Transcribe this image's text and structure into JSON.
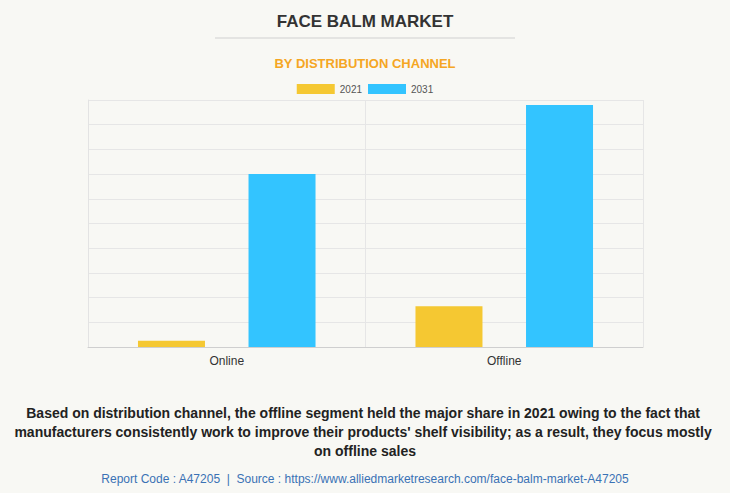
{
  "chart_data": {
    "type": "bar",
    "title": "FACE BALM MARKET",
    "subtitle": "BY DISTRIBUTION CHANNEL",
    "categories": [
      "Online",
      "Offline"
    ],
    "series": [
      {
        "name": "2021",
        "color": "#f5c832",
        "values": [
          0.25,
          1.65
        ]
      },
      {
        "name": "2031",
        "color": "#33c4ff",
        "values": [
          7.0,
          9.8
        ]
      }
    ],
    "ylim": [
      0,
      10
    ],
    "yticks": [
      0,
      1,
      2,
      3,
      4,
      5,
      6,
      7,
      8,
      9,
      10
    ],
    "grid": true,
    "tick_labels": "x",
    "legend": "top",
    "data_labels": false,
    "annotations": [
      "Based on distribution channel, the offline segment held the major share in 2021 owing to the fact that manufacturers consistently work to improve their products' shelf visibility; as a result, they focus mostly on offline sales",
      "Report Code : A47205  |  Source : https://www.alliedmarketresearch.com/face-balm-market-A47205"
    ]
  }
}
